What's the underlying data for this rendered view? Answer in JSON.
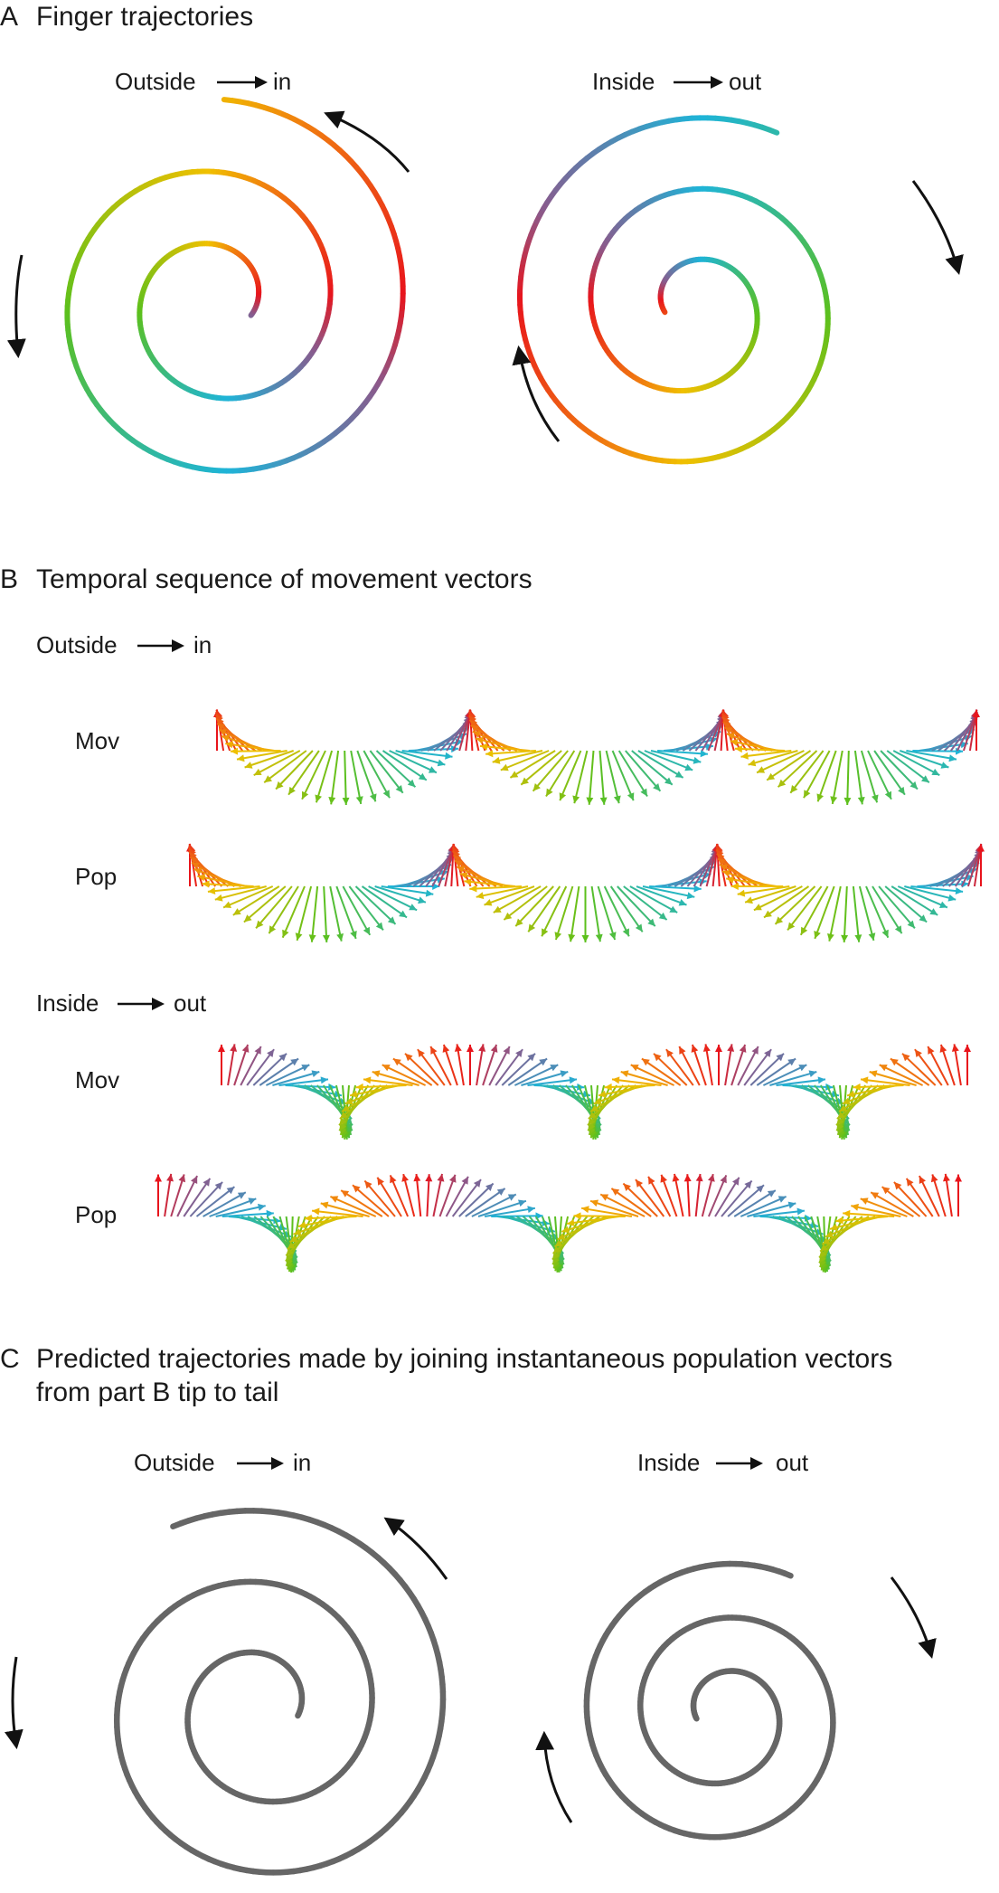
{
  "panels": {
    "a": {
      "letter": "A",
      "title": "Finger trajectories",
      "spirals": [
        {
          "label_prefix": "Outside",
          "label_suffix": "in",
          "direction": "outside-in",
          "coloring": "rainbow"
        },
        {
          "label_prefix": "Inside",
          "label_suffix": "out",
          "direction": "inside-out",
          "coloring": "rainbow"
        }
      ]
    },
    "b": {
      "letter": "B",
      "title": "Temporal sequence of movement vectors",
      "groups": [
        {
          "label_prefix": "Outside",
          "label_suffix": "in",
          "direction": "outside-in",
          "rows": [
            {
              "label": "Mov"
            },
            {
              "label": "Pop"
            }
          ]
        },
        {
          "label_prefix": "Inside",
          "label_suffix": "out",
          "direction": "inside-out",
          "rows": [
            {
              "label": "Mov"
            },
            {
              "label": "Pop"
            }
          ]
        }
      ]
    },
    "c": {
      "letter": "C",
      "title_line1": "Predicted trajectories made by joining instantaneous population vectors",
      "title_line2": "from part B tip to tail",
      "spirals": [
        {
          "label_prefix": "Outside",
          "label_suffix": "in",
          "direction": "outside-in",
          "coloring": "gray"
        },
        {
          "label_prefix": "Inside",
          "label_suffix": "out",
          "direction": "inside-out",
          "coloring": "gray"
        }
      ]
    }
  },
  "colors": {
    "text": "#1a1a1a",
    "arrow": "#111111",
    "predicted_trace": "#666666",
    "direction_palette": [
      "#e8141c",
      "#f07a10",
      "#f0c000",
      "#5cc01c",
      "#1eb4d8",
      "#8a5a8c"
    ]
  },
  "icons": {
    "direction_arrow": "right-arrow-icon",
    "rotation_arrow": "curved-arrow-icon"
  }
}
